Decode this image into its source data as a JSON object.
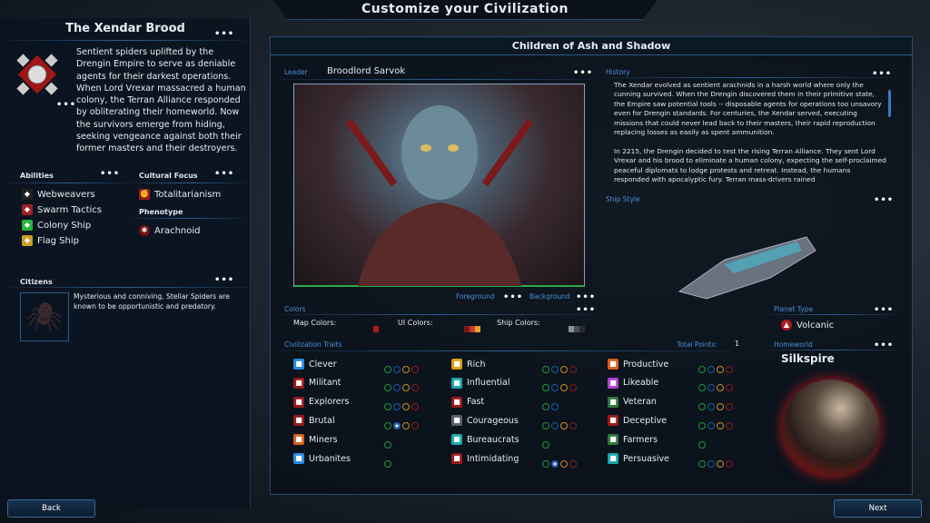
{
  "window_title": "Customize your Civilization",
  "civ": {
    "name": "The Xendar Brood",
    "description": "Sentient spiders uplifted by the Drengin Empire to serve as deniable agents for their darkest operations. When Lord Vrexar massacred a human colony, the Terran Alliance responded by obliterating their homeworld. Now the survivors emerge from hiding, seeking vengeance against both their former masters and their destroyers.",
    "more": "•••"
  },
  "abilities": {
    "label": "Abilities",
    "items": [
      {
        "label": "Webweavers",
        "icon": "web-icon",
        "color": "#222222"
      },
      {
        "label": "Swarm Tactics",
        "icon": "swarm-icon",
        "color": "#a0202a"
      },
      {
        "label": "Colony Ship",
        "icon": "colony-ship-icon",
        "color": "#2ab43a"
      },
      {
        "label": "Flag Ship",
        "icon": "flag-ship-icon",
        "color": "#c8a020"
      }
    ]
  },
  "cultural_focus": {
    "label": "Cultural Focus",
    "value": "Totalitarianism"
  },
  "phenotype": {
    "label": "Phenotype",
    "value": "Arachnoid"
  },
  "citizens": {
    "label": "Citizens",
    "description": "Mysterious and conniving, Stellar Spiders are known to be opportunistic and predatory."
  },
  "main_title": "Children of Ash and Shadow",
  "leader": {
    "label": "Leader",
    "name": "Broodlord Sarvok",
    "foreground": "Foreground",
    "background": "Background"
  },
  "history": {
    "label": "History",
    "p1": "The Xendar evolved as sentient arachnids in a harsh world where only the cunning survived. When the Drengin discovered them in their primitive state, the Empire saw potential tools -- disposable agents for operations too unsavory even for Drengin standards. For centuries, the Xendar served, executing missions that could never lead back to their masters, their rapid reproduction replacing losses as easily as spent ammunition.",
    "p2": "In 2215, the Drengin decided to test the rising Terran Alliance. They sent Lord Vrexar and his brood to eliminate a human colony, expecting the self-proclaimed peaceful diplomats to lodge protests and retreat. Instead, the humans responded with apocalyptic fury. Terran mass-drivers rained"
  },
  "ship_style": {
    "label": "Ship Style"
  },
  "colors": {
    "label": "Colors",
    "map": "Map Colors:",
    "ui": "UI Colors:",
    "ship": "Ship Colors:",
    "map_swatch": [
      "#b01c1c"
    ],
    "ui_swatch": [
      "#7a1a1a",
      "#c83a2a",
      "#e8a030"
    ],
    "ship_swatch": [
      "#8a948e",
      "#4a4e52",
      "#2a2c30"
    ]
  },
  "traits": {
    "label": "Civilization Traits",
    "total_label": "Total Points:",
    "total": "1",
    "pip_colors": [
      "#1e9a3a",
      "#1a5ab0",
      "#c8901a",
      "#8a1a1a"
    ],
    "items": [
      {
        "label": "Clever",
        "color": "#2a8ae0",
        "pips": 4,
        "selected": -1
      },
      {
        "label": "Militant",
        "color": "#9a1a1a",
        "pips": 4,
        "selected": -1
      },
      {
        "label": "Explorers",
        "color": "#9a1a1a",
        "pips": 4,
        "selected": -1
      },
      {
        "label": "Brutal",
        "color": "#9a1a1a",
        "pips": 4,
        "selected": 1
      },
      {
        "label": "Miners",
        "color": "#d8601a",
        "pips": 1,
        "selected": -1
      },
      {
        "label": "Urbanites",
        "color": "#2a8ae0",
        "pips": 1,
        "selected": -1
      },
      {
        "label": "Rich",
        "color": "#d8a010",
        "pips": 4,
        "selected": -1
      },
      {
        "label": "Influential",
        "color": "#18a8b0",
        "pips": 4,
        "selected": -1
      },
      {
        "label": "Fast",
        "color": "#9a1a1a",
        "pips": 2,
        "selected": -1
      },
      {
        "label": "Courageous",
        "color": "#5a5e68",
        "pips": 4,
        "selected": -1
      },
      {
        "label": "Bureaucrats",
        "color": "#18a8b0",
        "pips": 1,
        "selected": -1
      },
      {
        "label": "Intimidating",
        "color": "#9a1a1a",
        "pips": 4,
        "selected": 1
      },
      {
        "label": "Productive",
        "color": "#d8601a",
        "pips": 4,
        "selected": -1
      },
      {
        "label": "Likeable",
        "color": "#b040e0",
        "pips": 4,
        "selected": -1
      },
      {
        "label": "Veteran",
        "color": "#2a7a3a",
        "pips": 4,
        "selected": -1
      },
      {
        "label": "Deceptive",
        "color": "#9a1a1a",
        "pips": 4,
        "selected": -1
      },
      {
        "label": "Farmers",
        "color": "#2a7a3a",
        "pips": 1,
        "selected": -1
      },
      {
        "label": "Persuasive",
        "color": "#18a8b0",
        "pips": 4,
        "selected": -1
      }
    ]
  },
  "planet_type": {
    "label": "Planet Type",
    "value": "Volcanic"
  },
  "homeworld": {
    "label": "Homeworld",
    "value": "Silkspire"
  },
  "nav": {
    "back": "Back",
    "next": "Next"
  }
}
